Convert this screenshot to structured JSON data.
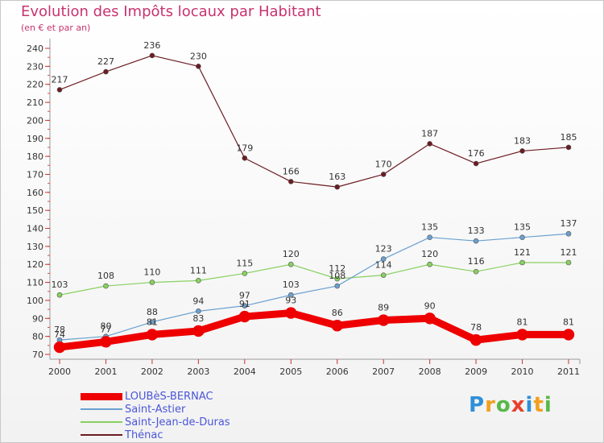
{
  "title": "Evolution des Impôts locaux par Habitant",
  "subtitle": "(en € et par an)",
  "logo": {
    "letters": [
      "P",
      "r",
      "o",
      "x",
      "i",
      "t",
      "i"
    ],
    "colors": [
      "#2f8fd8",
      "#f0a020",
      "#58b848",
      "#e8402a",
      "#2f8fd8",
      "#f0a020",
      "#58b848"
    ]
  },
  "chart_data": {
    "type": "line",
    "x": [
      "2000",
      "2001",
      "2002",
      "2003",
      "2004",
      "2005",
      "2006",
      "2007",
      "2008",
      "2009",
      "2010",
      "2011"
    ],
    "ylim": [
      70,
      240
    ],
    "yticks": [
      "70",
      "80",
      "90",
      "100",
      "110",
      "120",
      "130",
      "140",
      "150",
      "160",
      "170",
      "180",
      "190",
      "200",
      "210",
      "220",
      "230",
      "240"
    ],
    "grid": false,
    "legend": "bottom-left",
    "series": [
      {
        "name": "Thénac",
        "color": "#6b1c22",
        "width": 1.2,
        "values": [
          217,
          227,
          236,
          230,
          179,
          166,
          163,
          170,
          187,
          176,
          183,
          185
        ],
        "labels": [
          "217",
          "227",
          "236",
          "230",
          "179",
          "166",
          "163",
          "170",
          "187",
          "176",
          "183",
          "185"
        ]
      },
      {
        "name": "Saint-Jean-de-Duras",
        "color": "#88d060",
        "width": 1.2,
        "values": [
          103,
          108,
          110,
          111,
          115,
          120,
          112,
          114,
          120,
          116,
          121,
          121
        ],
        "labels": [
          "103",
          "108",
          "110",
          "111",
          "115",
          "120",
          "112",
          "114",
          "120",
          "116",
          "121",
          "121"
        ]
      },
      {
        "name": "Saint-Astier",
        "color": "#6aa0d0",
        "width": 1.2,
        "values": [
          78,
          80,
          88,
          94,
          97,
          103,
          108,
          123,
          135,
          133,
          135,
          137
        ],
        "labels": [
          "78",
          "80",
          "88",
          "94",
          "97",
          "103",
          "108",
          "123",
          "135",
          "133",
          "135",
          "137"
        ]
      },
      {
        "name": "LOUBèS-BERNAC",
        "color": "#ee0000",
        "width": 9,
        "values": [
          74,
          77,
          81,
          83,
          91,
          93,
          86,
          89,
          90,
          78,
          81,
          81
        ],
        "labels": [
          "74",
          "77",
          "81",
          "83",
          "91",
          "93",
          "86",
          "89",
          "90",
          "78",
          "81",
          "81"
        ]
      }
    ]
  }
}
